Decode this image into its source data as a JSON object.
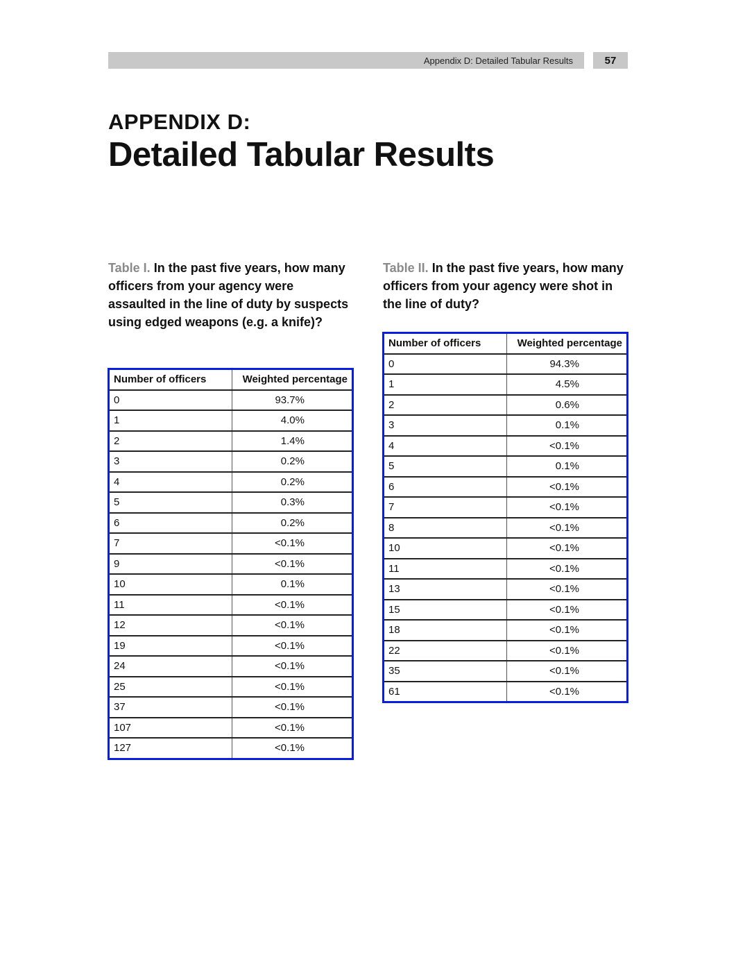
{
  "header": {
    "running_title": "Appendix D: Detailed Tabular Results",
    "page_number": "57"
  },
  "appendix": {
    "label": "APPENDIX D:",
    "title": "Detailed Tabular Results"
  },
  "table1": {
    "number": "Table I.",
    "question": "In the past five years, how many officers from your agency were assaulted in the line of duty by suspects using edged weapons (e.g. a knife)?",
    "columns": [
      "Number of officers",
      "Weighted percentage"
    ],
    "rows": [
      [
        "0",
        "93.7%"
      ],
      [
        "1",
        "4.0%"
      ],
      [
        "2",
        "1.4%"
      ],
      [
        "3",
        "0.2%"
      ],
      [
        "4",
        "0.2%"
      ],
      [
        "5",
        "0.3%"
      ],
      [
        "6",
        "0.2%"
      ],
      [
        "7",
        "<0.1%"
      ],
      [
        "9",
        "<0.1%"
      ],
      [
        "10",
        "0.1%"
      ],
      [
        "11",
        "<0.1%"
      ],
      [
        "12",
        "<0.1%"
      ],
      [
        "19",
        "<0.1%"
      ],
      [
        "24",
        "<0.1%"
      ],
      [
        "25",
        "<0.1%"
      ],
      [
        "37",
        "<0.1%"
      ],
      [
        "107",
        "<0.1%"
      ],
      [
        "127",
        "<0.1%"
      ]
    ]
  },
  "table2": {
    "number": "Table II.",
    "question": "In the past five years, how many officers from your agency were shot in the line of duty?",
    "columns": [
      "Number of officers",
      "Weighted percentage"
    ],
    "rows": [
      [
        "0",
        "94.3%"
      ],
      [
        "1",
        "4.5%"
      ],
      [
        "2",
        "0.6%"
      ],
      [
        "3",
        "0.1%"
      ],
      [
        "4",
        "<0.1%"
      ],
      [
        "5",
        "0.1%"
      ],
      [
        "6",
        "<0.1%"
      ],
      [
        "7",
        "<0.1%"
      ],
      [
        "8",
        "<0.1%"
      ],
      [
        "10",
        "<0.1%"
      ],
      [
        "11",
        "<0.1%"
      ],
      [
        "13",
        "<0.1%"
      ],
      [
        "15",
        "<0.1%"
      ],
      [
        "18",
        "<0.1%"
      ],
      [
        "22",
        "<0.1%"
      ],
      [
        "35",
        "<0.1%"
      ],
      [
        "61",
        "<0.1%"
      ]
    ]
  }
}
